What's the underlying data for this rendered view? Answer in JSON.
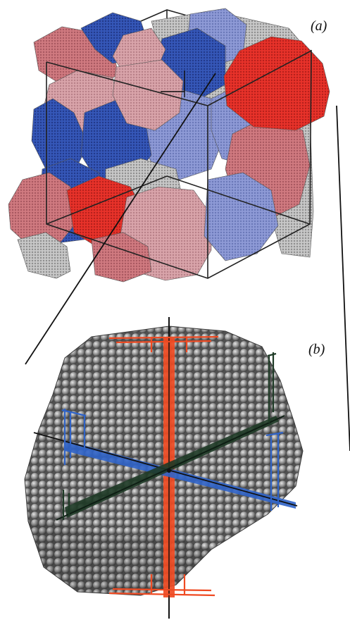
{
  "figure": {
    "panels": [
      {
        "label": "(a)"
      },
      {
        "label": "(b)"
      }
    ],
    "colors": {
      "red": "#e8322a",
      "dark_red": "#c0282a",
      "pink": "#d07a80",
      "light_pink": "#d9a4aa",
      "blue": "#3557b8",
      "light_blue": "#8e9ad6",
      "grey_atoms": "#8a8a8a",
      "axis_orange": "#ef4a22",
      "axis_blue": "#2f63c8",
      "axis_green": "#1e3a26"
    }
  }
}
